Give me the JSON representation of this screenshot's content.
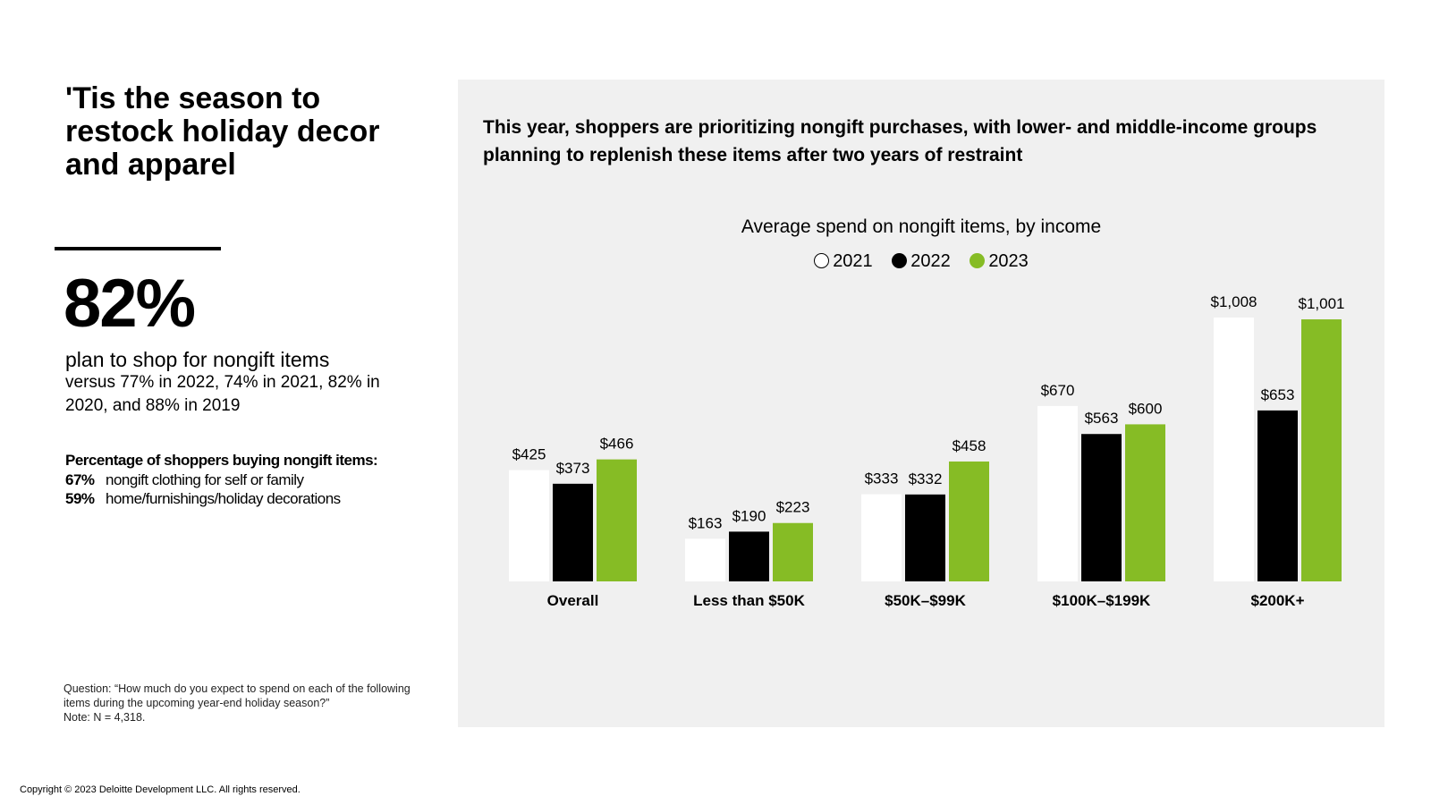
{
  "left": {
    "title": "'Tis the season to restock holiday decor and apparel",
    "stat_value": "82%",
    "stat_label": "plan to shop for nongift items",
    "stat_detail": "versus 77% in 2022, 74% in 2021, 82% in 2020, and 88% in 2019",
    "pct_heading": "Percentage of shoppers buying nongift items:",
    "pct_items": [
      {
        "pct": "67%",
        "label": "nongift clothing for self or family"
      },
      {
        "pct": "59%",
        "label": "home/furnishings/holiday decorations"
      }
    ],
    "footnote_question": "Question: “How much do you expect to spend on each of the following items during the upcoming year-end holiday season?”",
    "footnote_note": "Note: N = 4,318."
  },
  "panel": {
    "title": "This year, shoppers are prioritizing nongift purchases, with lower- and middle-income groups planning to replenish these items after two years of restraint"
  },
  "copyright": "Copyright © 2023 Deloitte Development LLC. All rights reserved.",
  "colors": {
    "2021": "#ffffff",
    "2022": "#000000",
    "2023": "#86bc25",
    "panel_bg": "#f0f0f0"
  },
  "chart_data": {
    "type": "bar",
    "title": "Average spend on nongift items, by income",
    "categories": [
      "Overall",
      "Less than $50K",
      "$50K–$99K",
      "$100K–$199K",
      "$200K+"
    ],
    "series": [
      {
        "name": "2021",
        "values": [
          425,
          163,
          333,
          670,
          1008
        ],
        "labels": [
          "$425",
          "$163",
          "$333",
          "$670",
          "$1,008"
        ]
      },
      {
        "name": "2022",
        "values": [
          373,
          190,
          332,
          563,
          653
        ],
        "labels": [
          "$373",
          "$190",
          "$332",
          "$563",
          "$653"
        ]
      },
      {
        "name": "2023",
        "values": [
          466,
          223,
          458,
          600,
          1001
        ],
        "labels": [
          "$466",
          "$223",
          "$458",
          "$600",
          "$1,001"
        ]
      }
    ],
    "legend_position": "top-center",
    "grid": false,
    "ylim": [
      0,
      1008
    ]
  }
}
